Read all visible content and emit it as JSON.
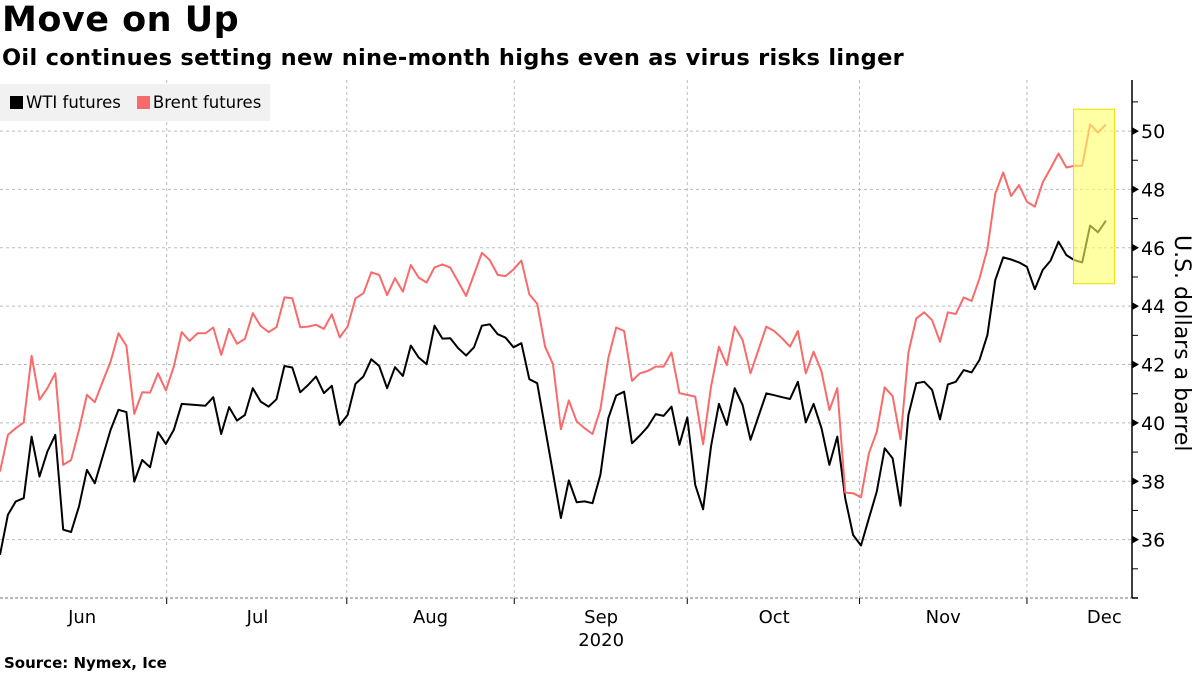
{
  "chart_data": {
    "type": "line",
    "title": "Move on Up",
    "subtitle": "Oil continues setting new nine-month highs even as virus risks linger",
    "source": "Source: Nymex, Ice",
    "xlabel": "2020",
    "ylabel": "U.S. dollars a barrel",
    "x_unit": "trading-day index (late May to early Dec 2020)",
    "x_range": [
      0,
      143.3
    ],
    "ylim": [
      34,
      51.75
    ],
    "yticks": [
      36,
      38,
      40,
      42,
      44,
      46,
      48,
      50
    ],
    "grid": true,
    "legend_position": "top-left",
    "month_labels": [
      {
        "label": "Jun",
        "center": 10.4
      },
      {
        "label": "Jul",
        "center": 32.6
      },
      {
        "label": "Aug",
        "center": 54.5
      },
      {
        "label": "Sep",
        "center": 76.1
      },
      {
        "label": "Oct",
        "center": 98.0
      },
      {
        "label": "Nov",
        "center": 119.4
      },
      {
        "label": "Dec",
        "center": 139.8
      }
    ],
    "month_boundaries": [
      21.1,
      43.9,
      65.1,
      87.0,
      108.8,
      130.0
    ],
    "highlight": {
      "x": [
        135.9,
        141.1
      ],
      "y": [
        44.77,
        50.75
      ],
      "color": "#ffff66"
    },
    "series": [
      {
        "name": "WTI futures",
        "color": "#000000",
        "values": [
          35.48,
          36.85,
          37.31,
          37.42,
          39.53,
          38.16,
          39.02,
          39.59,
          36.34,
          36.26,
          37.14,
          38.39,
          37.93,
          38.85,
          39.76,
          40.45,
          40.37,
          37.99,
          38.73,
          38.48,
          39.68,
          39.28,
          39.76,
          40.65,
          40.63,
          40.61,
          40.59,
          40.88,
          39.62,
          40.54,
          40.08,
          40.27,
          41.19,
          40.73,
          40.56,
          40.81,
          41.95,
          41.9,
          41.05,
          41.3,
          41.59,
          41.02,
          41.27,
          39.93,
          40.27,
          41.34,
          41.59,
          42.18,
          41.95,
          41.19,
          41.91,
          41.61,
          42.65,
          42.24,
          42.01,
          43.33,
          42.89,
          42.9,
          42.56,
          42.31,
          42.59,
          43.33,
          43.38,
          43.04,
          42.92,
          42.59,
          42.73,
          41.5,
          41.36,
          39.82,
          38.28,
          36.74,
          38.03,
          37.28,
          37.31,
          37.25,
          38.22,
          40.16,
          40.94,
          41.07,
          39.3,
          39.57,
          39.87,
          40.3,
          40.24,
          40.56,
          39.25,
          40.19,
          37.88,
          37.04,
          39.19,
          40.65,
          39.93,
          41.19,
          40.61,
          39.42,
          40.22,
          41.01,
          40.95,
          40.88,
          40.82,
          41.41,
          40.02,
          40.65,
          39.82,
          38.56,
          39.53,
          37.42,
          36.16,
          35.8,
          36.73,
          37.65,
          39.13,
          38.79,
          37.16,
          40.27,
          41.36,
          41.41,
          41.13,
          40.12,
          41.32,
          41.41,
          41.81,
          41.73,
          42.16,
          43.01,
          44.9,
          45.67,
          45.6,
          45.5,
          45.35,
          44.58,
          45.24,
          45.56,
          46.21,
          45.75,
          45.58,
          45.5,
          46.76,
          46.53,
          46.93
        ]
      },
      {
        "name": "Brent futures",
        "color": "#f96b6b",
        "values": [
          38.33,
          39.59,
          39.82,
          40.01,
          42.3,
          40.79,
          41.19,
          41.7,
          38.56,
          38.73,
          39.76,
          40.96,
          40.71,
          41.42,
          42.1,
          43.07,
          42.64,
          40.31,
          41.05,
          41.04,
          41.7,
          41.11,
          41.93,
          43.11,
          42.81,
          43.07,
          43.07,
          43.27,
          42.33,
          43.22,
          42.71,
          42.88,
          43.76,
          43.32,
          43.11,
          43.28,
          44.3,
          44.27,
          43.28,
          43.3,
          43.36,
          43.22,
          43.72,
          42.93,
          43.3,
          44.27,
          44.44,
          45.16,
          45.07,
          44.38,
          44.96,
          44.5,
          45.41,
          44.98,
          44.81,
          45.33,
          45.43,
          45.32,
          44.84,
          44.35,
          45.09,
          45.83,
          45.58,
          45.07,
          45.03,
          45.26,
          45.56,
          44.41,
          44.08,
          42.61,
          42.01,
          39.78,
          40.77,
          40.05,
          39.82,
          39.62,
          40.47,
          42.22,
          43.27,
          43.15,
          41.44,
          41.7,
          41.78,
          41.93,
          41.93,
          42.41,
          41.02,
          40.96,
          40.9,
          39.27,
          41.24,
          42.61,
          41.98,
          43.3,
          42.84,
          41.7,
          42.5,
          43.3,
          43.15,
          42.9,
          42.61,
          43.15,
          41.7,
          42.44,
          41.76,
          40.44,
          41.19,
          37.61,
          37.59,
          37.45,
          38.96,
          39.7,
          41.22,
          40.92,
          39.44,
          42.41,
          43.58,
          43.79,
          43.52,
          42.78,
          43.79,
          43.73,
          44.3,
          44.18,
          44.95,
          45.96,
          47.86,
          48.58,
          47.77,
          48.15,
          47.58,
          47.41,
          48.24,
          48.72,
          49.23,
          48.75,
          48.81,
          48.81,
          50.23,
          49.95,
          50.23
        ]
      }
    ]
  },
  "legend": {
    "wti": "WTI futures",
    "brent": "Brent futures"
  }
}
